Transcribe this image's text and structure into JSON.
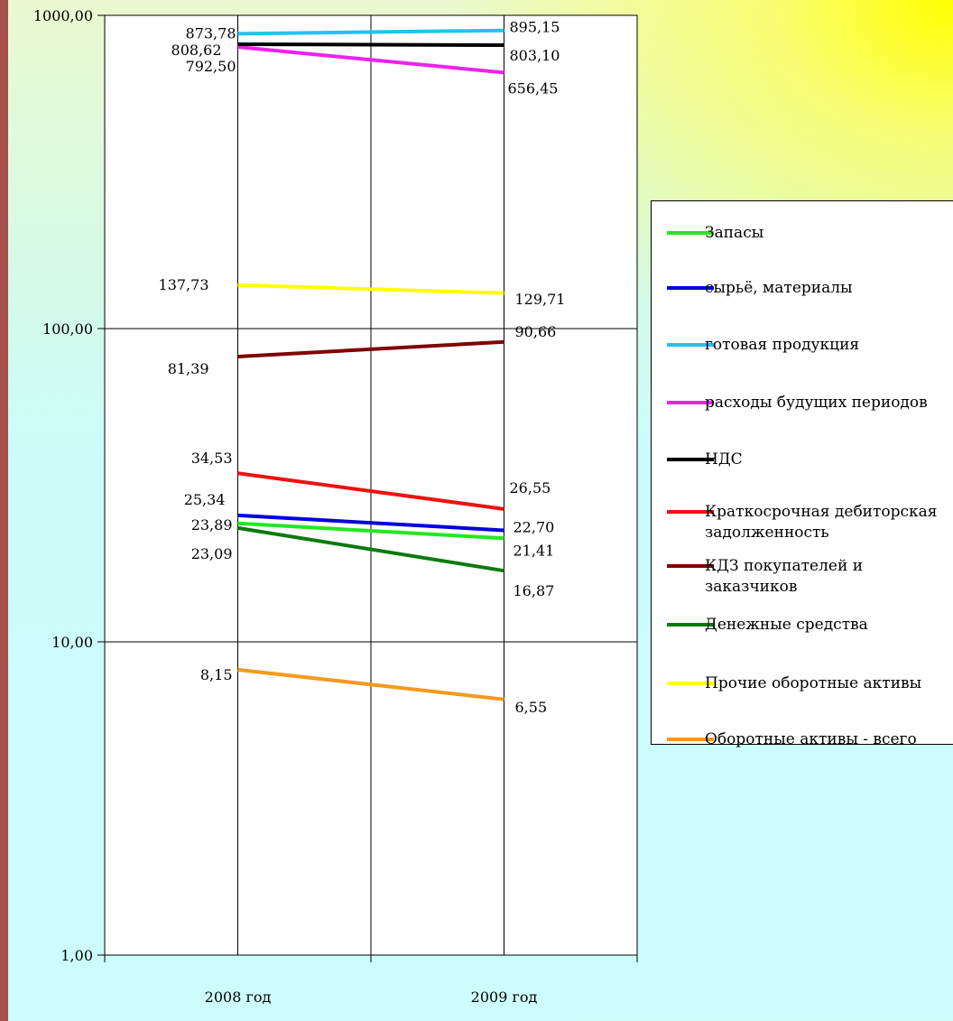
{
  "chart_data": {
    "type": "line",
    "yscale": "log",
    "ylim": [
      1,
      1000
    ],
    "categories": [
      "2008 год",
      "2009 год"
    ],
    "y_tick_labels": [
      "1000,00",
      "100,00",
      "10,00",
      "1,00"
    ],
    "grid": true,
    "legend_position": "right",
    "series": [
      {
        "name": "Запасы",
        "color": "#22e822",
        "values": [
          23.89,
          21.41
        ],
        "labels": [
          "23,89",
          "21,41"
        ]
      },
      {
        "name": "сырьё, материалы",
        "color": "#0000dd",
        "values": [
          25.34,
          22.7
        ],
        "labels": [
          "25,34",
          "22,70"
        ]
      },
      {
        "name": "готовая продукция",
        "color": "#21c3ee",
        "values": [
          873.78,
          895.15
        ],
        "labels": [
          "873,78",
          "895,15"
        ]
      },
      {
        "name": "расходы будущих периодов",
        "color": "#ee21ee",
        "values": [
          792.5,
          656.45
        ],
        "labels": [
          "792,50",
          "656,45"
        ]
      },
      {
        "name": "НДС",
        "color": "#000000",
        "values": [
          808.62,
          803.1
        ],
        "labels": [
          "808,62",
          "803,10"
        ]
      },
      {
        "name": "Краткосрочная дебиторская\nзадолженность",
        "color": "#ee1111",
        "values": [
          34.53,
          26.55
        ],
        "labels": [
          "34,53",
          "26,55"
        ]
      },
      {
        "name": "КДЗ покупателей и\nзаказчиков",
        "color": "#7f0000",
        "values": [
          81.39,
          90.66
        ],
        "labels": [
          "81,39",
          "90,66"
        ]
      },
      {
        "name": "Денежные средства",
        "color": "#0b7a0b",
        "values": [
          23.09,
          16.87
        ],
        "labels": [
          "23,09",
          "16,87"
        ]
      },
      {
        "name": "Прочие оборотные активы",
        "color": "#ffff00",
        "values": [
          137.73,
          129.71
        ],
        "labels": [
          "137,73",
          "129,71"
        ]
      },
      {
        "name": "Оборотные активы - всего",
        "color": "#f39a1e",
        "values": [
          8.15,
          6.55
        ],
        "labels": [
          "8,15",
          "6,55"
        ]
      }
    ]
  }
}
